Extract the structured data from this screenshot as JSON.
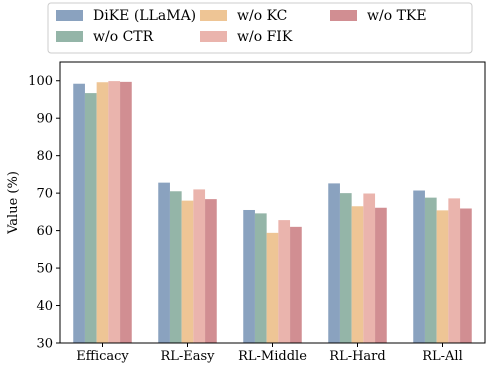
{
  "chart_data": {
    "type": "bar",
    "categories": [
      "Efficacy",
      "RL-Easy",
      "RL-Middle",
      "RL-Hard",
      "RL-All"
    ],
    "series": [
      {
        "name": "DiKE (LLaMA)",
        "color": "#8aa2bf",
        "values": [
          99.2,
          72.8,
          65.5,
          72.6,
          70.7
        ]
      },
      {
        "name": "w/o CTR",
        "color": "#94b5a8",
        "values": [
          96.7,
          70.5,
          64.6,
          70.0,
          68.8
        ]
      },
      {
        "name": "w/o KC",
        "color": "#eec595",
        "values": [
          99.6,
          68.0,
          59.4,
          66.5,
          65.4
        ]
      },
      {
        "name": "w/o FIK",
        "color": "#eab4ad",
        "values": [
          99.9,
          71.0,
          62.8,
          69.9,
          68.6
        ]
      },
      {
        "name": "w/o TKE",
        "color": "#d18e92",
        "values": [
          99.7,
          68.4,
          61.0,
          66.1,
          65.9
        ]
      }
    ],
    "ylabel": "Value (%)",
    "xlabel": "",
    "ylim": [
      30,
      105
    ],
    "yticks": [
      30,
      40,
      50,
      60,
      70,
      80,
      90,
      100
    ],
    "grid": false,
    "legend_position": "top-center"
  }
}
